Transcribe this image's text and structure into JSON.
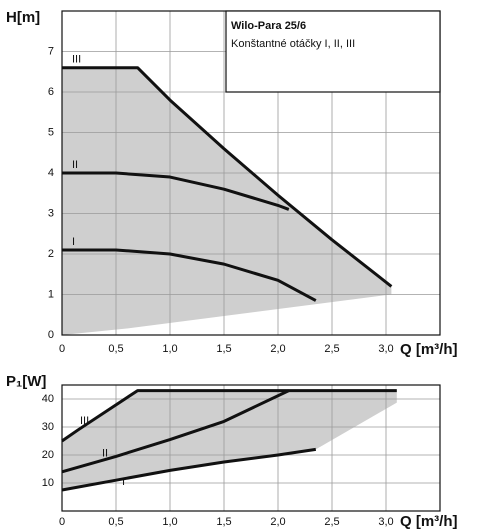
{
  "chart_data": [
    {
      "type": "line",
      "annotations": [
        "Wilo-Para 25/6",
        "Konštantné otáčky I, II, III"
      ],
      "y_label": "H[m]",
      "x_label": "Q [m³/h]",
      "xlim": [
        0,
        3.5
      ],
      "ylim": [
        0,
        8
      ],
      "xticks": [
        0,
        {
          "value": 0.5,
          "label": "0,5"
        },
        {
          "value": 1,
          "label": "1,0"
        },
        {
          "value": 1.5,
          "label": "1,5"
        },
        {
          "value": 2,
          "label": "2,0"
        },
        {
          "value": 2.5,
          "label": "2,5"
        },
        {
          "value": 3,
          "label": "3,0"
        }
      ],
      "yticks": [
        0,
        1,
        2,
        3,
        4,
        5,
        6,
        7
      ],
      "grid": true,
      "shade_color": "#cfcfcf",
      "series": [
        {
          "name": "III",
          "color": "#111111",
          "x": [
            0,
            0.7,
            1.0,
            1.5,
            2.0,
            2.5,
            3.05
          ],
          "values": [
            6.6,
            6.6,
            5.8,
            4.6,
            3.45,
            2.35,
            1.2
          ]
        },
        {
          "name": "II",
          "color": "#111111",
          "x": [
            0,
            0.5,
            1.0,
            1.5,
            2.0,
            2.1
          ],
          "values": [
            4.0,
            4.0,
            3.9,
            3.6,
            3.2,
            3.1
          ]
        },
        {
          "name": "I",
          "color": "#111111",
          "x": [
            0,
            0.5,
            1.0,
            1.5,
            2.0,
            2.35
          ],
          "values": [
            2.1,
            2.1,
            2.0,
            1.75,
            1.35,
            0.85
          ]
        }
      ]
    },
    {
      "type": "line",
      "y_label": "P₁[W]",
      "x_label": "Q [m³/h]",
      "xlim": [
        0,
        3.5
      ],
      "ylim": [
        0,
        45
      ],
      "xticks": [
        0,
        {
          "value": 0.5,
          "label": "0,5"
        },
        {
          "value": 1,
          "label": "1,0"
        },
        {
          "value": 1.5,
          "label": "1,5"
        },
        {
          "value": 2,
          "label": "2,0"
        },
        {
          "value": 2.5,
          "label": "2,5"
        },
        {
          "value": 3,
          "label": "3,0"
        }
      ],
      "yticks": [
        10,
        20,
        30,
        40
      ],
      "grid": true,
      "shade_color": "#cfcfcf",
      "series": [
        {
          "name": "III",
          "color": "#111111",
          "x": [
            0,
            0.15,
            0.7,
            3.1
          ],
          "values": [
            25,
            29,
            43,
            43
          ]
        },
        {
          "name": "II",
          "color": "#111111",
          "x": [
            0,
            0.5,
            1.0,
            1.5,
            2.1
          ],
          "values": [
            14,
            19.5,
            25.5,
            32,
            43
          ]
        },
        {
          "name": "I",
          "color": "#111111",
          "x": [
            0,
            0.5,
            1.0,
            1.5,
            2.0,
            2.35
          ],
          "values": [
            7.5,
            11,
            14.5,
            17.5,
            20,
            22
          ]
        }
      ]
    }
  ]
}
